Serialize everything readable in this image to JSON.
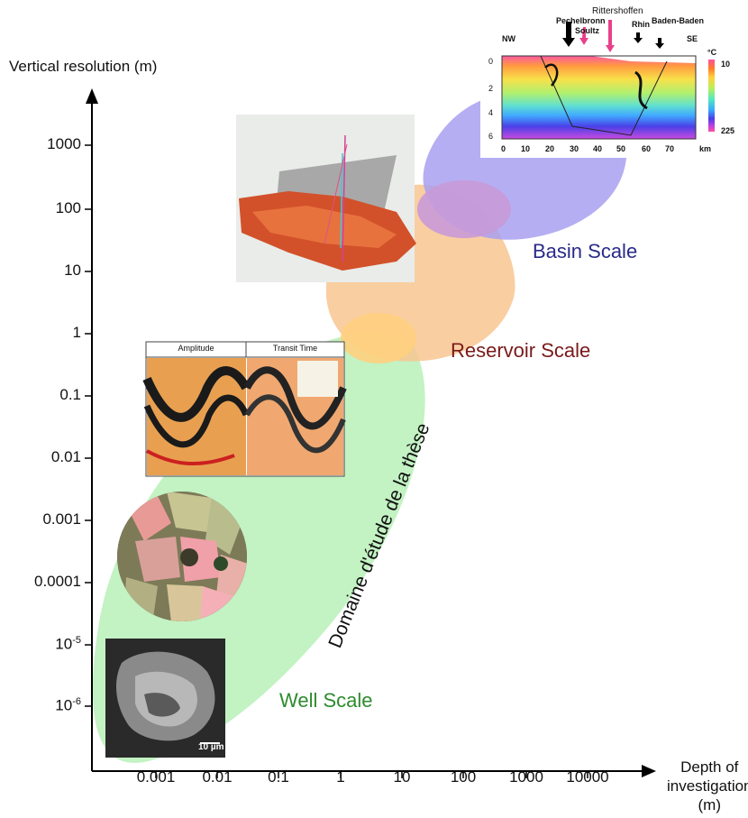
{
  "axes": {
    "y_title": "Vertical resolution (m)",
    "x_title_line1": "Depth of",
    "x_title_line2": "investigation",
    "x_title_line3": "(m)",
    "y_ticks": [
      "1000",
      "100",
      "10",
      "1",
      "0.1",
      "0.01",
      "0.001",
      "0.0001"
    ],
    "y_ticks_exp": [
      {
        "base": "10",
        "exp": "-5"
      },
      {
        "base": "10",
        "exp": "-6"
      }
    ],
    "x_ticks": [
      "0.001",
      "0.01",
      "0.1",
      "1",
      "10",
      "100",
      "1000",
      "10000"
    ]
  },
  "scales": {
    "well": {
      "label": "Well Scale",
      "color": "#2e8b2e",
      "fill": "#b8f0b8"
    },
    "reservoir": {
      "label": "Reservoir Scale",
      "color": "#7a1a1a",
      "fill": "#f8c690"
    },
    "basin": {
      "label": "Basin Scale",
      "color": "#2a2a8a",
      "fill": "#a8a0f0"
    },
    "thesis_domain": "Domaine d'étude de la thèse"
  },
  "seismic_panel": {
    "col1": "Amplitude",
    "col2": "Transit Time"
  },
  "micro_panel": {
    "scale_bar": "10 µm"
  },
  "section_panel": {
    "sites": [
      "Rittershoffen",
      "Pechelbronn",
      "Soultz",
      "Rhin",
      "Baden-Baden"
    ],
    "left_end": "NW",
    "right_end": "SE",
    "unit": "°C",
    "temp_min": "10",
    "temp_max": "225",
    "depth_ticks": [
      "0",
      "2",
      "4",
      "6"
    ],
    "km_ticks": [
      "0",
      "10",
      "20",
      "30",
      "40",
      "50",
      "60",
      "70"
    ],
    "km_unit": "km"
  }
}
